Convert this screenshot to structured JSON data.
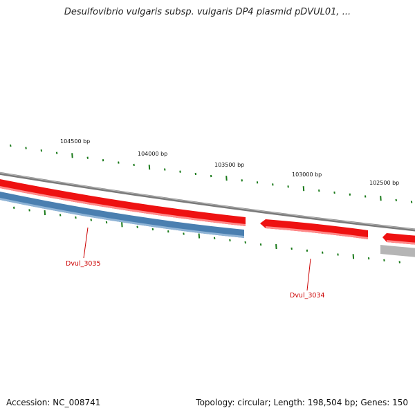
{
  "title": "Desulfovibrio vulgaris subsp. vulgaris DP4 plasmid pDVUL01, ...",
  "footer": {
    "accession": "Accession: NC_008741",
    "summary": "Topology: circular; Length: 198,504 bp; Genes: 150"
  },
  "colors": {
    "backbone": "#7a7a7a",
    "forward_gene": "#ee1111",
    "reverse_gene": "#4a7fb0",
    "other_gene": "#b5b5b5",
    "tick": "#1a7a1a",
    "gene_label": "#cc0000"
  },
  "scale": {
    "labels": [
      "104500 bp",
      "104000 bp",
      "103500 bp",
      "103000 bp",
      "102500 bp"
    ]
  },
  "genes": [
    {
      "label": "Dvul_3035",
      "strand": "reverse",
      "color": "reverse"
    },
    {
      "label": "Dvul_3034",
      "strand": "forward",
      "color": "forward"
    }
  ]
}
